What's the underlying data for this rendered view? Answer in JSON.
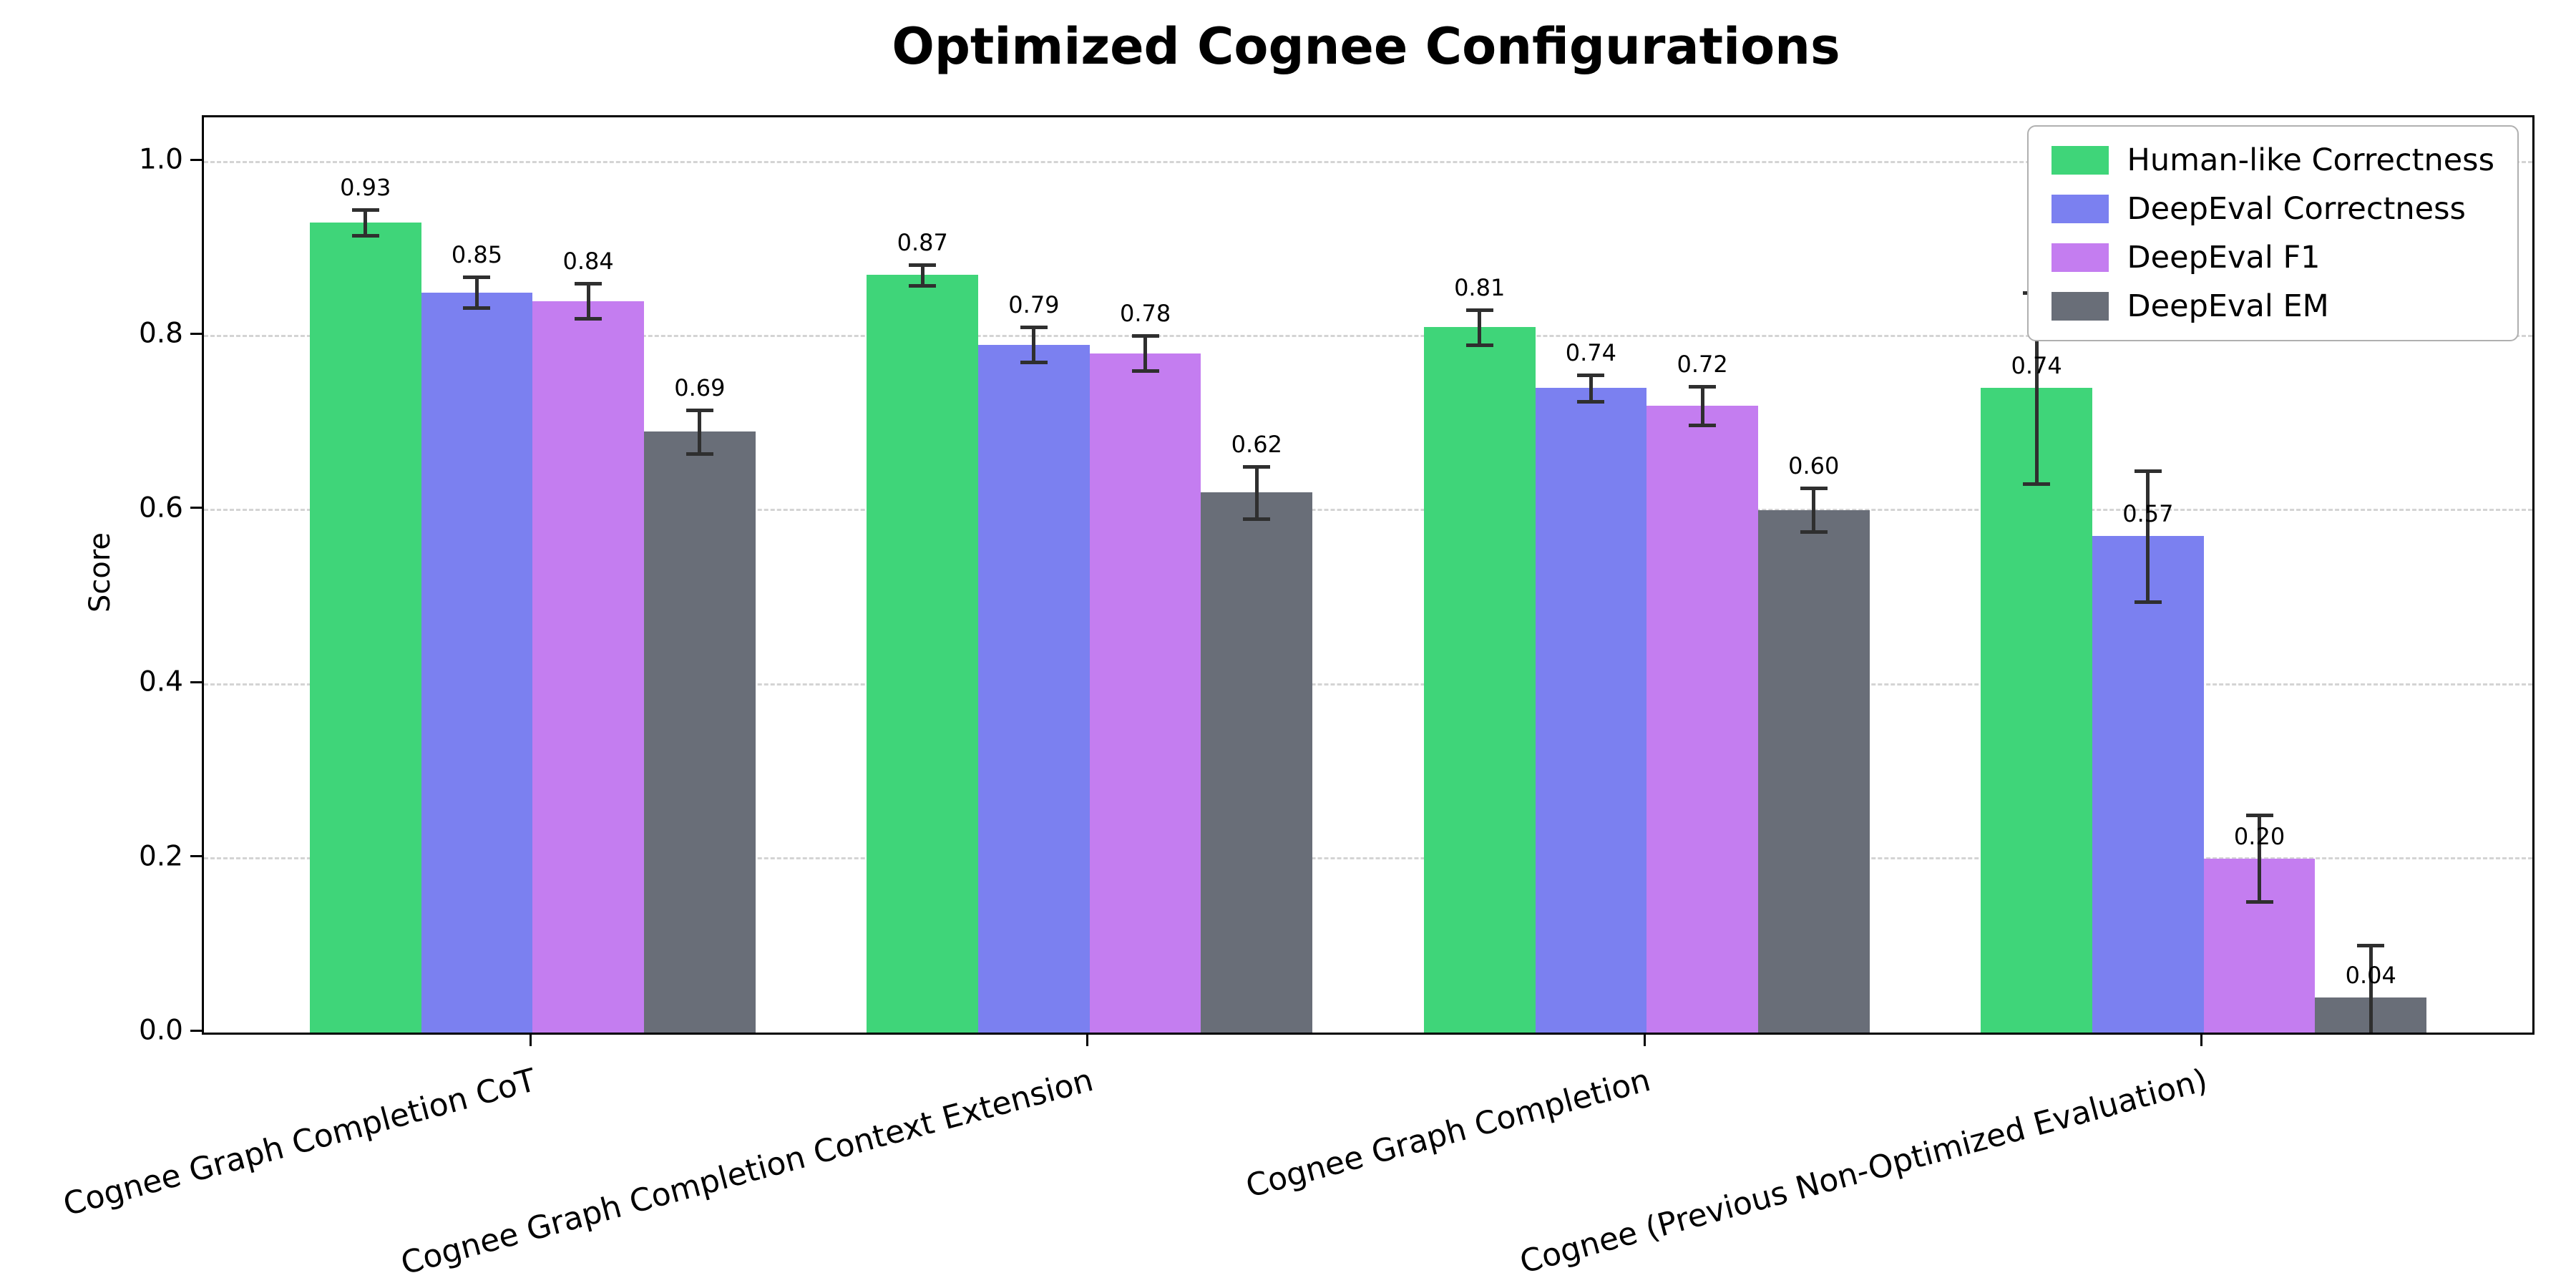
{
  "chart_data": {
    "type": "bar",
    "title": "Optimized Cognee Configurations",
    "xlabel": "",
    "ylabel": "Score",
    "ylim": [
      0,
      1.05
    ],
    "yticks": [
      "0.0",
      "0.2",
      "0.4",
      "0.6",
      "0.8",
      "1.0"
    ],
    "grid": "horizontal dashed",
    "legend_position": "upper right",
    "error_bar_color": "#2f2f2f",
    "categories": [
      "Cognee Graph Completion CoT",
      "Cognee Graph Completion Context Extension",
      "Cognee Graph Completion",
      "Cognee (Previous Non-Optimized Evaluation)"
    ],
    "series": [
      {
        "name": "Human-like Correctness",
        "color": "#3fd579",
        "values": [
          0.93,
          0.87,
          0.81,
          0.74
        ],
        "errors": [
          0.015,
          0.012,
          0.02,
          0.11
        ],
        "labels": [
          "0.93",
          "0.87",
          "0.81",
          "0.74"
        ]
      },
      {
        "name": "DeepEval Correctness",
        "color": "#7b80f0",
        "values": [
          0.85,
          0.79,
          0.74,
          0.57
        ],
        "errors": [
          0.018,
          0.02,
          0.015,
          0.075
        ],
        "labels": [
          "0.85",
          "0.79",
          "0.74",
          "0.57"
        ]
      },
      {
        "name": "DeepEval F1",
        "color": "#c47df0",
        "values": [
          0.84,
          0.78,
          0.72,
          0.2
        ],
        "errors": [
          0.02,
          0.02,
          0.022,
          0.05
        ],
        "labels": [
          "0.84",
          "0.78",
          "0.72",
          "0.20"
        ]
      },
      {
        "name": "DeepEval EM",
        "color": "#696e78",
        "values": [
          0.69,
          0.62,
          0.6,
          0.04
        ],
        "errors": [
          0.025,
          0.03,
          0.025,
          0.06
        ],
        "labels": [
          "0.69",
          "0.62",
          "0.60",
          "0.04"
        ]
      }
    ]
  }
}
